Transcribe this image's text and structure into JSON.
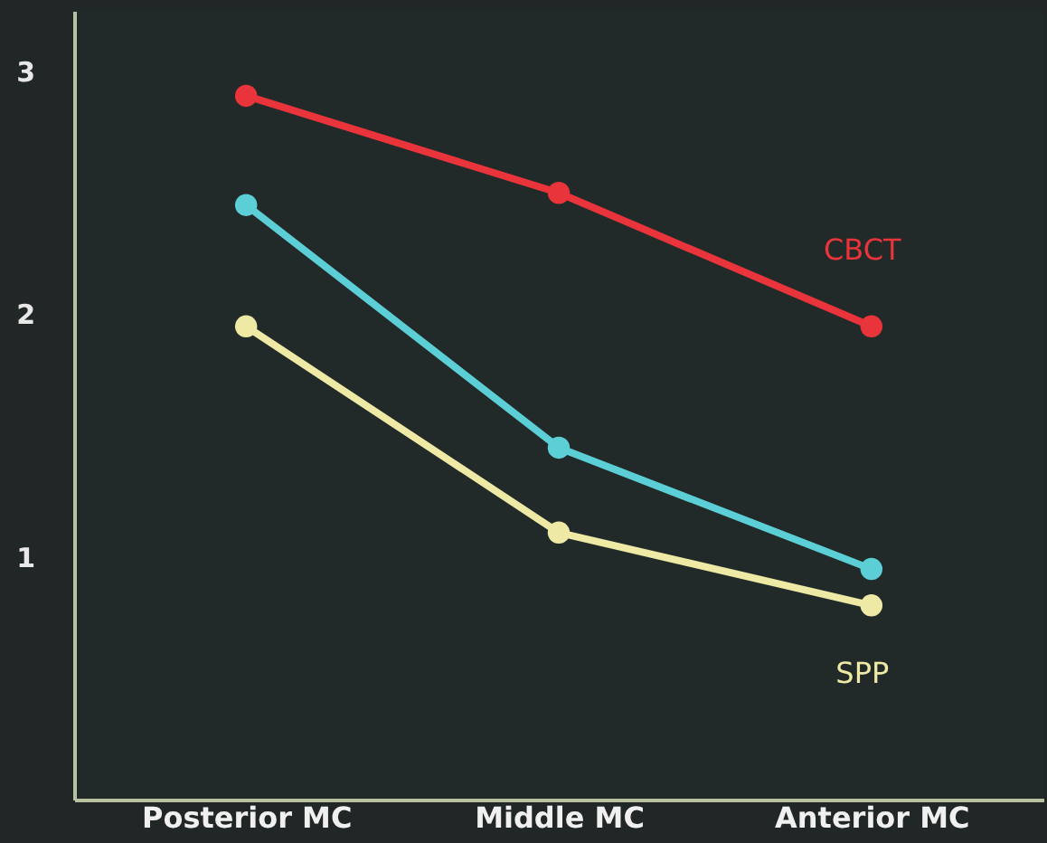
{
  "chart_data": {
    "type": "line",
    "categories": [
      "Posterior MC",
      "Middle MC",
      "Anterior MC"
    ],
    "series": [
      {
        "name": "CBCT",
        "color": "#e8343a",
        "values": [
          2.9,
          2.5,
          1.95
        ]
      },
      {
        "color": "#5ccfd6",
        "values": [
          2.45,
          1.45,
          0.95
        ]
      },
      {
        "name": "SPP",
        "color": "#efe9a6",
        "values": [
          1.95,
          1.1,
          0.8
        ]
      }
    ],
    "ylim": [
      0,
      3.25
    ],
    "yticks": [
      1,
      2,
      3
    ],
    "grid": false,
    "legend": false,
    "marker": "circle",
    "line_style": "solid"
  }
}
